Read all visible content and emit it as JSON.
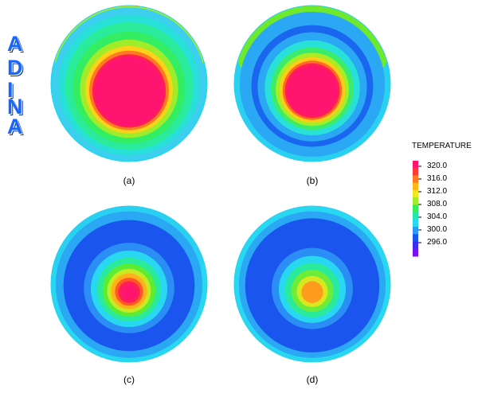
{
  "logo": {
    "letters": [
      "A",
      "D",
      "I",
      "N",
      "A"
    ]
  },
  "panels": [
    {
      "label": "(a)",
      "bands": [
        {
          "r": 1.0,
          "color": "#27d8f0"
        },
        {
          "r": 0.98,
          "color": "#3ccfee"
        },
        {
          "r": 0.9,
          "color": "#27e1d8"
        },
        {
          "r": 0.82,
          "color": "#2aeb9a"
        },
        {
          "r": 0.72,
          "color": "#33ee62"
        },
        {
          "r": 0.63,
          "color": "#9eec2a"
        },
        {
          "r": 0.56,
          "color": "#ffd21a"
        },
        {
          "r": 0.51,
          "color": "#ff7a22"
        },
        {
          "r": 0.47,
          "color": "#ff1f55"
        },
        {
          "r": 0.44,
          "color": "#ff1470"
        }
      ],
      "top_cap": {
        "color": "#ff1470",
        "inner_color": "#9eec2a"
      }
    },
    {
      "label": "(b)",
      "bands": [
        {
          "r": 1.0,
          "color": "#2ad0f0"
        },
        {
          "r": 0.93,
          "color": "#2aa8f4"
        },
        {
          "r": 0.78,
          "color": "#1a66ef"
        },
        {
          "r": 0.7,
          "color": "#2aa8f4"
        },
        {
          "r": 0.61,
          "color": "#27e0d8"
        },
        {
          "r": 0.53,
          "color": "#3bec6a"
        },
        {
          "r": 0.47,
          "color": "#a8ec26"
        },
        {
          "r": 0.42,
          "color": "#ffcc18"
        },
        {
          "r": 0.38,
          "color": "#ff6a24"
        },
        {
          "r": 0.35,
          "color": "#ff1f55"
        },
        {
          "r": 0.32,
          "color": "#ff1470"
        }
      ],
      "top_cap": {
        "color": "#ff2a3a",
        "inner_color": "#6fe92c"
      }
    },
    {
      "label": "(c)",
      "bands": [
        {
          "r": 1.0,
          "color": "#27d8f0"
        },
        {
          "r": 0.94,
          "color": "#2aa8f4"
        },
        {
          "r": 0.84,
          "color": "#1a55ee"
        },
        {
          "r": 0.58,
          "color": "#2a8ef4"
        },
        {
          "r": 0.49,
          "color": "#27d8f0"
        },
        {
          "r": 0.41,
          "color": "#2aea9c"
        },
        {
          "r": 0.34,
          "color": "#5bec36"
        },
        {
          "r": 0.28,
          "color": "#c8ea22"
        },
        {
          "r": 0.23,
          "color": "#ffb01a"
        },
        {
          "r": 0.18,
          "color": "#ff5a26"
        },
        {
          "r": 0.14,
          "color": "#ff1f55"
        },
        {
          "r": 0.1,
          "color": "#ff1470"
        }
      ],
      "top_cap": {
        "color": "#3ee86e",
        "inner_color": "#2ad0f0"
      }
    },
    {
      "label": "(d)",
      "bands": [
        {
          "r": 1.0,
          "color": "#27d8f0"
        },
        {
          "r": 0.94,
          "color": "#2aa8f4"
        },
        {
          "r": 0.86,
          "color": "#1a55ee"
        },
        {
          "r": 0.52,
          "color": "#2a8ef4"
        },
        {
          "r": 0.43,
          "color": "#27d8f0"
        },
        {
          "r": 0.35,
          "color": "#2aea9c"
        },
        {
          "r": 0.27,
          "color": "#6ded3a"
        },
        {
          "r": 0.2,
          "color": "#d9e81e"
        },
        {
          "r": 0.14,
          "color": "#ff9c1e"
        }
      ],
      "top_cap": {
        "color": "#48e95e",
        "inner_color": "#27d8f0"
      }
    }
  ],
  "legend": {
    "title": "TEMPERATURE",
    "ticks": [
      "320.0",
      "316.0",
      "312.0",
      "308.0",
      "304.0",
      "300.0",
      "296.0"
    ],
    "colors": [
      "#ff1470",
      "#ff3a3a",
      "#ff7a22",
      "#ffb81a",
      "#f0e81e",
      "#9eec2a",
      "#3bec5a",
      "#27e6b0",
      "#27d8f0",
      "#2a98f4",
      "#1a55ee",
      "#3a2cf0",
      "#7a10f0"
    ]
  }
}
